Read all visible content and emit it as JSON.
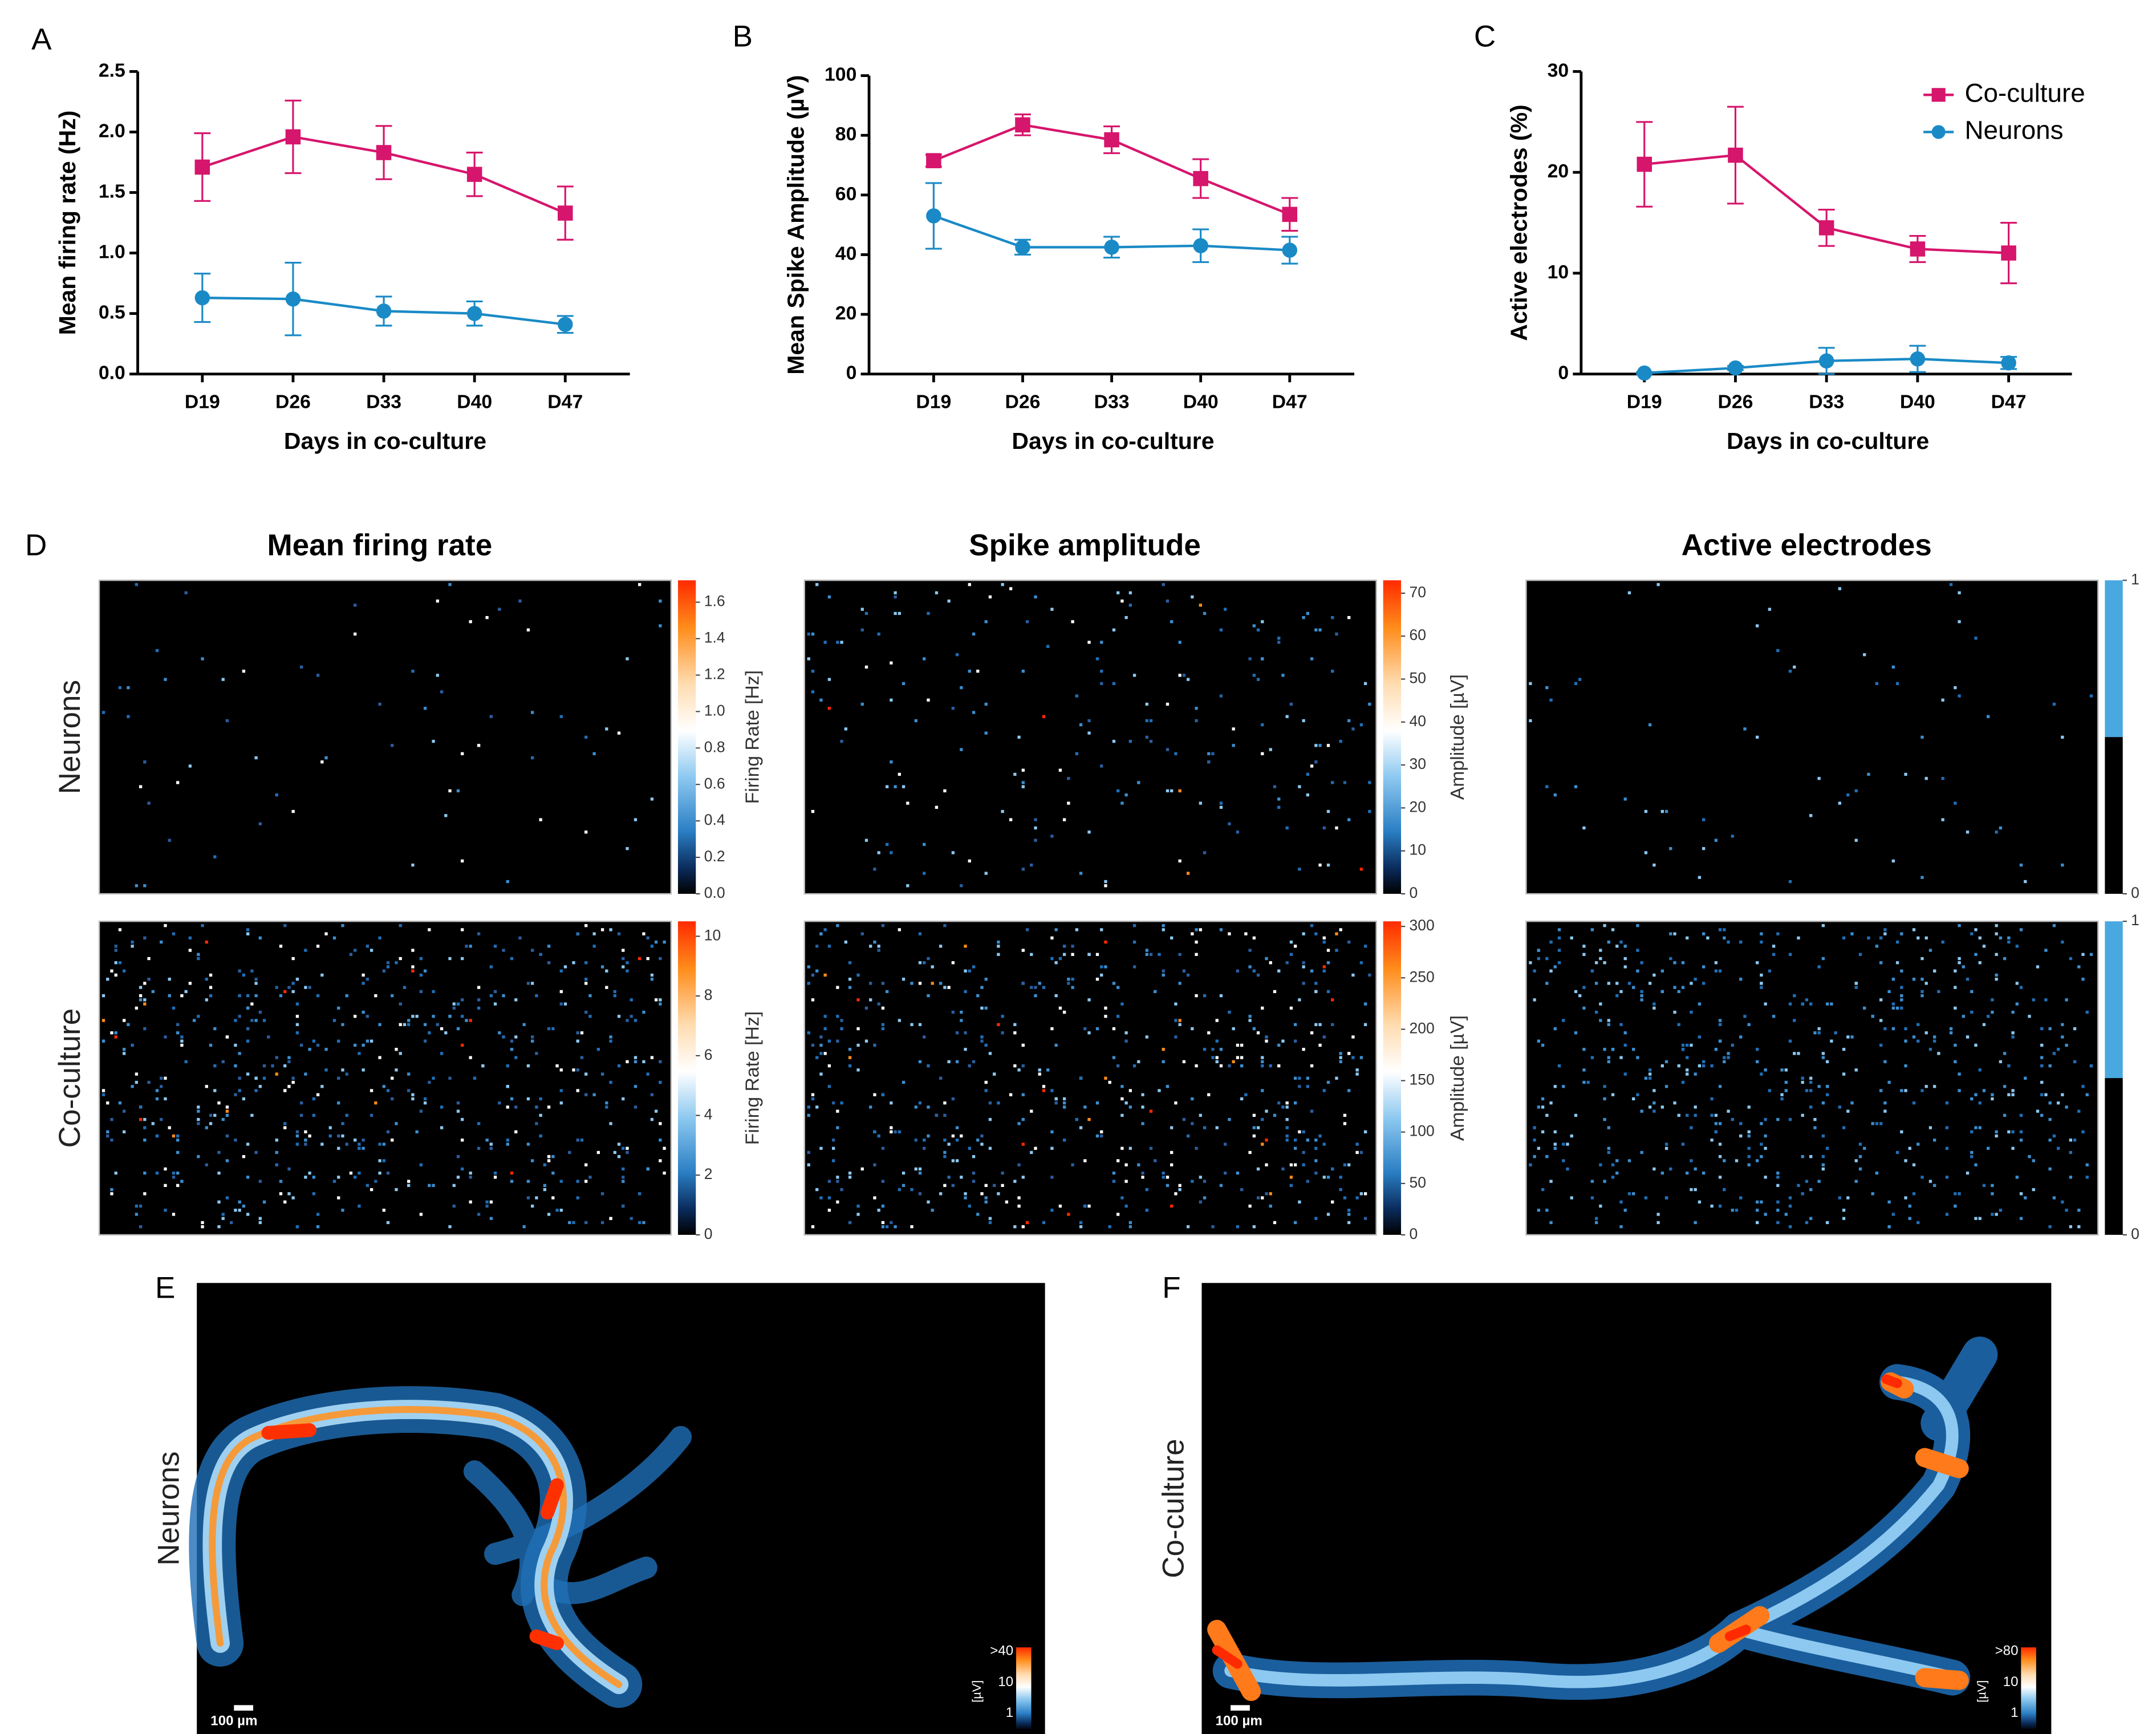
{
  "chart_data": [
    {
      "type": "line",
      "panel": "A",
      "ylabel": "Mean firing rate (Hz)",
      "xlabel": "Days in co-culture",
      "categories": [
        "D19",
        "D26",
        "D33",
        "D40",
        "D47"
      ],
      "ylim": [
        0,
        2.5
      ],
      "yticks": [
        {
          "value": 0,
          "label": "0.0"
        },
        0.5,
        {
          "value": 1,
          "label": "1.0"
        },
        1.5,
        {
          "value": 2,
          "label": "2.0"
        },
        2.5
      ],
      "series": [
        {
          "name": "Co-culture",
          "color": "#d6156c",
          "marker": "square",
          "values": [
            1.71,
            1.96,
            1.83,
            1.65,
            1.33
          ],
          "errors": [
            0.28,
            0.3,
            0.22,
            0.18,
            0.22
          ]
        },
        {
          "name": "Neurons",
          "color": "#1a8ac6",
          "marker": "circle",
          "values": [
            0.63,
            0.62,
            0.52,
            0.5,
            0.41
          ],
          "errors": [
            0.2,
            0.3,
            0.12,
            0.1,
            0.07
          ]
        }
      ]
    },
    {
      "type": "line",
      "panel": "B",
      "ylabel": "Mean Spike Amplitude (µV)",
      "xlabel": "Days in co-culture",
      "categories": [
        "D19",
        "D26",
        "D33",
        "D40",
        "D47"
      ],
      "ylim": [
        0,
        100
      ],
      "yticks": [
        0,
        20,
        40,
        60,
        80,
        100
      ],
      "series": [
        {
          "name": "Co-culture",
          "color": "#d6156c",
          "marker": "square",
          "values": [
            71.5,
            83.5,
            78.5,
            65.5,
            53.5
          ],
          "errors": [
            2,
            3.5,
            4.5,
            6.5,
            5.5
          ]
        },
        {
          "name": "Neurons",
          "color": "#1a8ac6",
          "marker": "circle",
          "values": [
            53,
            42.5,
            42.5,
            43,
            41.5
          ],
          "errors": [
            11,
            2.5,
            3.5,
            5.5,
            4.5
          ]
        }
      ]
    },
    {
      "type": "line",
      "panel": "C",
      "ylabel": "Active electrodes (%)",
      "xlabel": "Days in co-culture",
      "categories": [
        "D19",
        "D26",
        "D33",
        "D40",
        "D47"
      ],
      "ylim": [
        0,
        30
      ],
      "yticks": [
        0,
        10,
        20,
        30
      ],
      "legend": "upper right",
      "series": [
        {
          "name": "Co-culture",
          "color": "#d6156c",
          "marker": "square",
          "values": [
            20.8,
            21.7,
            14.5,
            12.4,
            12.0
          ],
          "errors": [
            4.2,
            4.8,
            1.8,
            1.3,
            3
          ]
        },
        {
          "name": "Neurons",
          "color": "#1a8ac6",
          "marker": "circle",
          "values": [
            0.1,
            0.6,
            1.3,
            1.5,
            1.1
          ],
          "errors": [
            0.1,
            0.2,
            1.3,
            1.3,
            0.6
          ]
        }
      ]
    }
  ],
  "heatmaps": {
    "panel": "D",
    "columns": [
      "Mean firing rate",
      "Spike amplitude",
      "Active electrodes"
    ],
    "rows": [
      "Neurons",
      "Co-culture"
    ],
    "colorbars": [
      [
        {
          "label": "Firing Rate [Hz]",
          "colormap": "diverging",
          "ylim": [
            0,
            1.72
          ],
          "yticks": [
            {
              "value": 0,
              "label": "0.0"
            },
            0.2,
            0.4,
            0.6,
            0.8,
            {
              "value": 1,
              "label": "1.0"
            },
            1.2,
            1.4,
            1.6
          ]
        },
        {
          "label": "Amplitude [µV]",
          "colormap": "diverging",
          "ylim": [
            0,
            73
          ],
          "yticks": [
            0,
            10,
            20,
            30,
            40,
            50,
            60,
            70
          ]
        },
        {
          "colormap": "binary",
          "ylim": [
            0,
            1
          ],
          "yticks": [
            0,
            1
          ]
        }
      ],
      [
        {
          "label": "Firing Rate [Hz]",
          "colormap": "diverging",
          "ylim": [
            0,
            10.5
          ],
          "yticks": [
            0,
            2,
            4,
            6,
            8,
            10
          ]
        },
        {
          "label": "Amplitude [µV]",
          "colormap": "diverging",
          "ylim": [
            0,
            305
          ],
          "yticks": [
            0,
            50,
            100,
            150,
            200,
            250,
            300
          ]
        },
        {
          "colormap": "binary",
          "ylim": [
            0,
            1
          ],
          "yticks": [
            0,
            1
          ]
        }
      ]
    ]
  },
  "maps": [
    {
      "panel": "E",
      "row": "Neurons",
      "scale_bar": "100 µm",
      "colorbar": {
        "label": "[µV]",
        "ticks": [
          ">40",
          "10",
          "1"
        ]
      }
    },
    {
      "panel": "F",
      "row": "Co-culture",
      "scale_bar": "100 µm",
      "colorbar": {
        "label": "[µV]",
        "ticks": [
          ">80",
          "10",
          "1"
        ]
      }
    }
  ]
}
